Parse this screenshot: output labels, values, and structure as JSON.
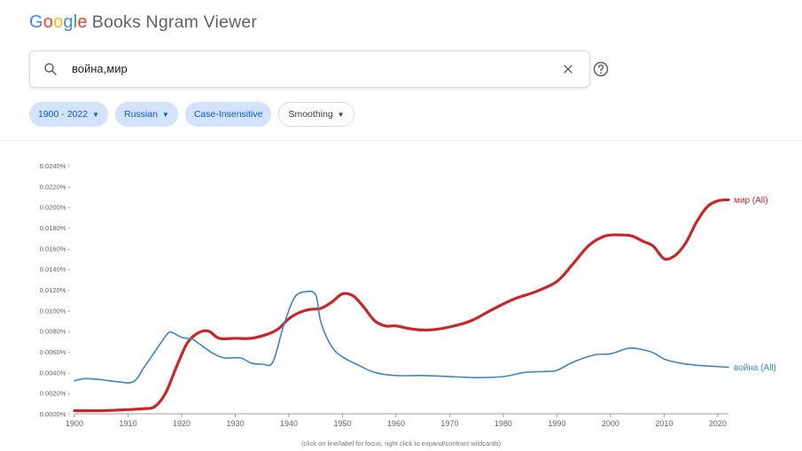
{
  "header": {
    "logo_letters": [
      {
        "char": "G",
        "color": "#4285f4"
      },
      {
        "char": "o",
        "color": "#ea4335"
      },
      {
        "char": "o",
        "color": "#fbbc05"
      },
      {
        "char": "g",
        "color": "#4285f4"
      },
      {
        "char": "l",
        "color": "#34a853"
      },
      {
        "char": "e",
        "color": "#ea4335"
      }
    ],
    "product_name": "Books Ngram Viewer"
  },
  "search": {
    "value": "война,мир",
    "search_icon": "search-icon",
    "clear_icon": "close-icon",
    "help_icon": "help-circle-icon"
  },
  "filters": [
    {
      "label": "1900 - 2022",
      "dropdown": true,
      "active": true
    },
    {
      "label": "Russian",
      "dropdown": true,
      "active": true
    },
    {
      "label": "Case-Insensitive",
      "dropdown": false,
      "active": true
    },
    {
      "label": "Smoothing",
      "dropdown": true,
      "active": false
    }
  ],
  "colors": {
    "chip_active_bg": "#d3e3fd",
    "chip_active_text": "#0b57d0"
  },
  "chart_data": {
    "type": "line",
    "xlim": [
      1900,
      2022
    ],
    "ylim": [
      0,
      0.024
    ],
    "x_ticks": [
      1900,
      1910,
      1920,
      1930,
      1940,
      1950,
      1960,
      1970,
      1980,
      1990,
      2000,
      2010,
      2020
    ],
    "y_ticks": [
      {
        "value": 0,
        "label": "0.0000%"
      },
      {
        "value": 0.002,
        "label": "0.0020%"
      },
      {
        "value": 0.004,
        "label": "0.0040%"
      },
      {
        "value": 0.006,
        "label": "0.0060%"
      },
      {
        "value": 0.008,
        "label": "0.0080%"
      },
      {
        "value": 0.01,
        "label": "0.0100%"
      },
      {
        "value": 0.012,
        "label": "0.0120%"
      },
      {
        "value": 0.014,
        "label": "0.0140%"
      },
      {
        "value": 0.016,
        "label": "0.0160%"
      },
      {
        "value": 0.018,
        "label": "0.0180%"
      },
      {
        "value": 0.02,
        "label": "0.0200%"
      },
      {
        "value": 0.022,
        "label": "0.0220%"
      },
      {
        "value": 0.024,
        "label": "0.0240%"
      }
    ],
    "grid": false,
    "legend": "inline-right",
    "series": [
      {
        "name": "мир (All)",
        "color": "#cc2529",
        "points": [
          [
            1900,
            0.0003
          ],
          [
            1905,
            0.0003
          ],
          [
            1910,
            0.0004
          ],
          [
            1913,
            0.0005
          ],
          [
            1915,
            0.0007
          ],
          [
            1917,
            0.002
          ],
          [
            1919,
            0.0045
          ],
          [
            1921,
            0.0068
          ],
          [
            1923,
            0.0078
          ],
          [
            1925,
            0.008
          ],
          [
            1927,
            0.0073
          ],
          [
            1930,
            0.0073
          ],
          [
            1933,
            0.0073
          ],
          [
            1936,
            0.0077
          ],
          [
            1938,
            0.0082
          ],
          [
            1940,
            0.0092
          ],
          [
            1942,
            0.0098
          ],
          [
            1944,
            0.0101
          ],
          [
            1946,
            0.0102
          ],
          [
            1948,
            0.0108
          ],
          [
            1950,
            0.0116
          ],
          [
            1952,
            0.0114
          ],
          [
            1954,
            0.0103
          ],
          [
            1956,
            0.009
          ],
          [
            1958,
            0.0085
          ],
          [
            1960,
            0.0085
          ],
          [
            1963,
            0.0082
          ],
          [
            1966,
            0.0081
          ],
          [
            1970,
            0.0084
          ],
          [
            1974,
            0.009
          ],
          [
            1978,
            0.0101
          ],
          [
            1982,
            0.0111
          ],
          [
            1986,
            0.0118
          ],
          [
            1990,
            0.0128
          ],
          [
            1993,
            0.0145
          ],
          [
            1996,
            0.0163
          ],
          [
            1999,
            0.0172
          ],
          [
            2002,
            0.0173
          ],
          [
            2004,
            0.0172
          ],
          [
            2006,
            0.0167
          ],
          [
            2008,
            0.0162
          ],
          [
            2010,
            0.015
          ],
          [
            2012,
            0.0153
          ],
          [
            2014,
            0.0165
          ],
          [
            2016,
            0.0185
          ],
          [
            2018,
            0.02
          ],
          [
            2020,
            0.0206
          ],
          [
            2022,
            0.0207
          ]
        ]
      },
      {
        "name": "война (All)",
        "color": "#3d85c6",
        "points": [
          [
            1900,
            0.0032
          ],
          [
            1902,
            0.0034
          ],
          [
            1905,
            0.0033
          ],
          [
            1908,
            0.0031
          ],
          [
            1911,
            0.0031
          ],
          [
            1913,
            0.0045
          ],
          [
            1915,
            0.006
          ],
          [
            1917,
            0.0075
          ],
          [
            1918,
            0.0079
          ],
          [
            1920,
            0.0074
          ],
          [
            1922,
            0.0072
          ],
          [
            1924,
            0.0065
          ],
          [
            1926,
            0.0058
          ],
          [
            1928,
            0.0054
          ],
          [
            1931,
            0.0054
          ],
          [
            1933,
            0.0049
          ],
          [
            1935,
            0.0048
          ],
          [
            1937,
            0.005
          ],
          [
            1939,
            0.0085
          ],
          [
            1941,
            0.0112
          ],
          [
            1943,
            0.0118
          ],
          [
            1945,
            0.0115
          ],
          [
            1946,
            0.0088
          ],
          [
            1948,
            0.0065
          ],
          [
            1950,
            0.0055
          ],
          [
            1953,
            0.0047
          ],
          [
            1956,
            0.004
          ],
          [
            1960,
            0.0037
          ],
          [
            1965,
            0.0037
          ],
          [
            1970,
            0.0036
          ],
          [
            1975,
            0.0035
          ],
          [
            1980,
            0.0036
          ],
          [
            1984,
            0.004
          ],
          [
            1988,
            0.0041
          ],
          [
            1990,
            0.0042
          ],
          [
            1993,
            0.005
          ],
          [
            1997,
            0.0057
          ],
          [
            2000,
            0.0058
          ],
          [
            2003,
            0.0063
          ],
          [
            2005,
            0.0063
          ],
          [
            2008,
            0.0059
          ],
          [
            2010,
            0.0053
          ],
          [
            2013,
            0.0049
          ],
          [
            2016,
            0.0047
          ],
          [
            2019,
            0.0046
          ],
          [
            2022,
            0.0045
          ]
        ]
      }
    ]
  },
  "footer": {
    "hint": "(click on line/label for focus, right click to expand/contract wildcards)"
  }
}
